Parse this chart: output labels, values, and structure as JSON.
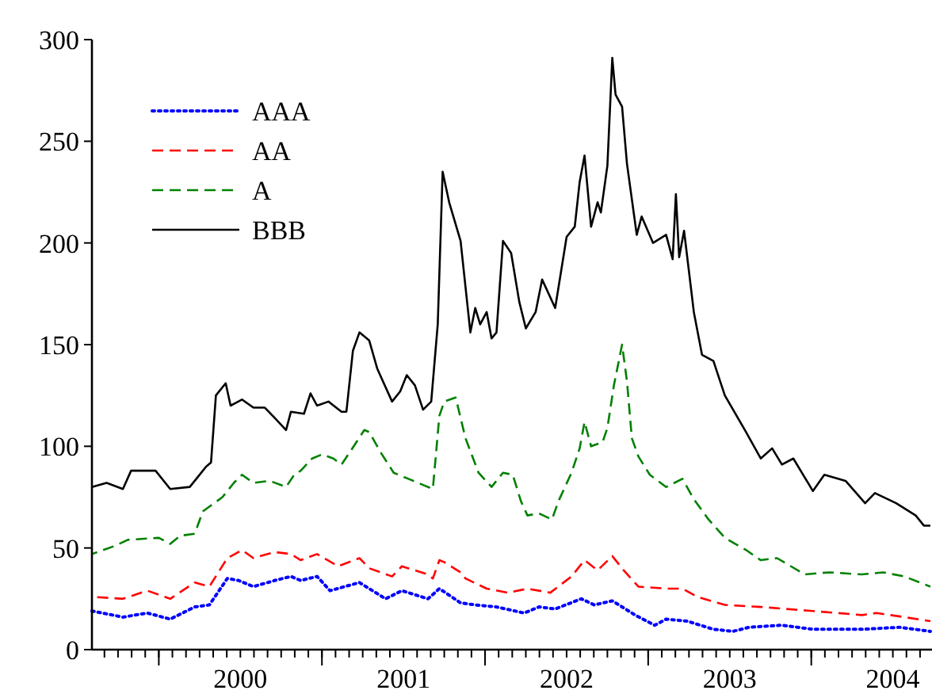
{
  "chart_data": {
    "type": "line",
    "legend": "top left",
    "grid": false,
    "xlim": [
      1999.59,
      2004.74
    ],
    "ylim": [
      0,
      300
    ],
    "yticks": [
      0,
      50,
      100,
      150,
      200,
      250,
      300
    ],
    "xticks": [
      {
        "value": 2000,
        "label": null
      },
      {
        "value": 2000.5,
        "label": "2000"
      },
      {
        "value": 2001,
        "label": null
      },
      {
        "value": 2001.5,
        "label": "2001"
      },
      {
        "value": 2002,
        "label": null
      },
      {
        "value": 2002.5,
        "label": "2002"
      },
      {
        "value": 2003,
        "label": null
      },
      {
        "value": 2003.5,
        "label": "2003"
      },
      {
        "value": 2004,
        "label": null
      },
      {
        "value": 2004.5,
        "label": "2004"
      }
    ],
    "series": [
      {
        "name": "AAA",
        "color": "#0000ff",
        "line_style": "dotted",
        "x": [
          1999.59,
          1999.78,
          1999.93,
          2000.07,
          2000.22,
          2000.31,
          2000.42,
          2000.49,
          2000.58,
          2000.71,
          2000.81,
          2000.87,
          2000.97,
          2001.05,
          2001.23,
          2001.39,
          2001.49,
          2001.65,
          2001.72,
          2001.85,
          2001.94,
          2002.07,
          2002.24,
          2002.33,
          2002.43,
          2002.59,
          2002.67,
          2002.78,
          2002.92,
          2003.04,
          2003.11,
          2003.24,
          2003.4,
          2003.52,
          2003.62,
          2003.82,
          2004.01,
          2004.31,
          2004.54,
          2004.73
        ],
        "values": [
          19,
          16,
          18,
          15,
          21,
          22,
          35,
          34,
          31,
          34,
          36,
          34,
          36,
          29,
          33,
          25,
          29,
          25,
          30,
          23,
          22,
          21,
          18,
          21,
          20,
          25,
          22,
          24,
          17,
          12,
          15,
          14,
          10,
          9,
          11,
          12,
          10,
          10,
          11,
          9
        ]
      },
      {
        "name": "AA",
        "color": "#ff0000",
        "line_style": "dashed",
        "x": [
          1999.59,
          1999.78,
          1999.93,
          2000.07,
          2000.22,
          2000.31,
          2000.42,
          2000.51,
          2000.58,
          2000.71,
          2000.81,
          2000.87,
          2000.97,
          2001.1,
          2001.23,
          2001.29,
          2001.43,
          2001.49,
          2001.65,
          2001.68,
          2001.72,
          2001.75,
          2001.85,
          2001.88,
          2002.01,
          2002.14,
          2002.26,
          2002.4,
          2002.53,
          2002.61,
          2002.69,
          2002.78,
          2002.85,
          2002.94,
          2003.11,
          2003.21,
          2003.3,
          2003.47,
          2003.69,
          2004.01,
          2004.31,
          2004.4,
          2004.57,
          2004.73
        ],
        "values": [
          26,
          25,
          29,
          25,
          33,
          31,
          45,
          49,
          45,
          48,
          47,
          44,
          47,
          41,
          45,
          40,
          36,
          41,
          37,
          35,
          44,
          43,
          38,
          35,
          30,
          28,
          30,
          28,
          36,
          44,
          39,
          46,
          39,
          31,
          30,
          30,
          26,
          22,
          21,
          19,
          17,
          18,
          16,
          14
        ]
      },
      {
        "name": "A",
        "color": "#008000",
        "line_style": "dashed",
        "x": [
          1999.59,
          1999.73,
          1999.81,
          2000.0,
          2000.07,
          2000.13,
          2000.22,
          2000.27,
          2000.39,
          2000.46,
          2000.51,
          2000.58,
          2000.68,
          2000.78,
          2000.83,
          2000.87,
          2000.94,
          2001.0,
          2001.07,
          2001.12,
          2001.17,
          2001.26,
          2001.29,
          2001.36,
          2001.44,
          2001.53,
          2001.62,
          2001.68,
          2001.72,
          2001.75,
          2001.82,
          2001.88,
          2001.96,
          2002.04,
          2002.11,
          2002.17,
          2002.22,
          2002.26,
          2002.33,
          2002.41,
          2002.45,
          2002.53,
          2002.58,
          2002.61,
          2002.65,
          2002.72,
          2002.75,
          2002.79,
          2002.84,
          2002.87,
          2002.9,
          2002.94,
          2003.01,
          2003.11,
          2003.21,
          2003.28,
          2003.37,
          2003.47,
          2003.6,
          2003.69,
          2003.79,
          2003.96,
          2004.11,
          2004.31,
          2004.44,
          2004.57,
          2004.73
        ],
        "values": [
          47,
          51,
          54,
          55,
          52,
          56,
          57,
          68,
          75,
          82,
          86,
          82,
          83,
          80,
          86,
          88,
          94,
          96,
          94,
          91,
          97,
          108,
          107,
          97,
          87,
          84,
          81,
          79,
          115,
          122,
          124,
          104,
          87,
          80,
          87,
          86,
          73,
          66,
          67,
          64,
          73,
          87,
          99,
          112,
          100,
          102,
          109,
          130,
          150,
          132,
          104,
          95,
          86,
          80,
          84,
          74,
          64,
          55,
          49,
          44,
          45,
          37,
          38,
          37,
          38,
          36,
          31
        ]
      },
      {
        "name": "BBB",
        "color": "#000000",
        "line_style": "solid",
        "x": [
          1999.59,
          1999.68,
          1999.78,
          1999.83,
          1999.98,
          2000.07,
          2000.19,
          2000.29,
          2000.32,
          2000.35,
          2000.41,
          2000.44,
          2000.51,
          2000.58,
          2000.65,
          2000.71,
          2000.78,
          2000.81,
          2000.89,
          2000.93,
          2000.97,
          2001.04,
          2001.12,
          2001.15,
          2001.19,
          2001.23,
          2001.29,
          2001.34,
          2001.43,
          2001.48,
          2001.52,
          2001.57,
          2001.62,
          2001.67,
          2001.71,
          2001.74,
          2001.78,
          2001.85,
          2001.91,
          2001.94,
          2001.97,
          2002.01,
          2002.04,
          2002.07,
          2002.11,
          2002.16,
          2002.21,
          2002.25,
          2002.31,
          2002.35,
          2002.43,
          2002.5,
          2002.55,
          2002.58,
          2002.61,
          2002.65,
          2002.69,
          2002.71,
          2002.75,
          2002.78,
          2002.8,
          2002.84,
          2002.87,
          2002.93,
          2002.96,
          2003.03,
          2003.11,
          2003.15,
          2003.17,
          2003.19,
          2003.22,
          2003.28,
          2003.33,
          2003.4,
          2003.47,
          2003.6,
          2003.69,
          2003.76,
          2003.82,
          2003.89,
          2004.01,
          2004.08,
          2004.21,
          2004.33,
          2004.39,
          2004.52,
          2004.64,
          2004.69,
          2004.73
        ],
        "values": [
          80,
          82,
          79,
          88,
          88,
          79,
          80,
          90,
          92,
          125,
          131,
          120,
          123,
          119,
          119,
          114,
          108,
          117,
          116,
          126,
          120,
          122,
          117,
          117,
          147,
          156,
          152,
          138,
          122,
          127,
          135,
          130,
          118,
          122,
          160,
          235,
          220,
          201,
          156,
          168,
          160,
          166,
          153,
          156,
          201,
          195,
          171,
          158,
          166,
          182,
          168,
          203,
          208,
          230,
          243,
          208,
          220,
          215,
          238,
          291,
          273,
          267,
          239,
          204,
          213,
          200,
          204,
          192,
          224,
          193,
          206,
          166,
          145,
          142,
          125,
          107,
          94,
          99,
          91,
          94,
          78,
          86,
          83,
          72,
          77,
          72,
          66,
          61,
          61
        ]
      }
    ]
  }
}
